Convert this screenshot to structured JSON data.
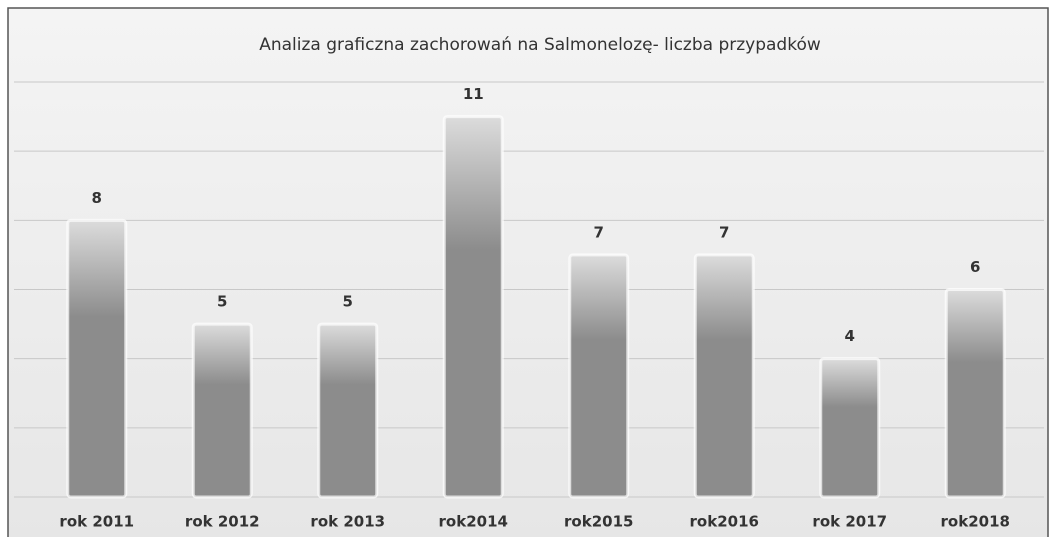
{
  "chart_data": {
    "type": "bar",
    "title": "Analiza graficzna zachorowań na Salmonelozę- liczba przypadków",
    "categories": [
      "rok 2011",
      "rok 2012",
      "rok 2013",
      "rok2014",
      "rok2015",
      "rok2016",
      "rok 2017",
      "rok2018"
    ],
    "values": [
      8,
      5,
      5,
      11,
      7,
      7,
      4,
      6
    ],
    "color": "#8c8c8c",
    "ylim": [
      0,
      12
    ],
    "yticks": [
      0,
      2,
      4,
      6,
      8,
      10,
      12
    ],
    "grid": true
  }
}
